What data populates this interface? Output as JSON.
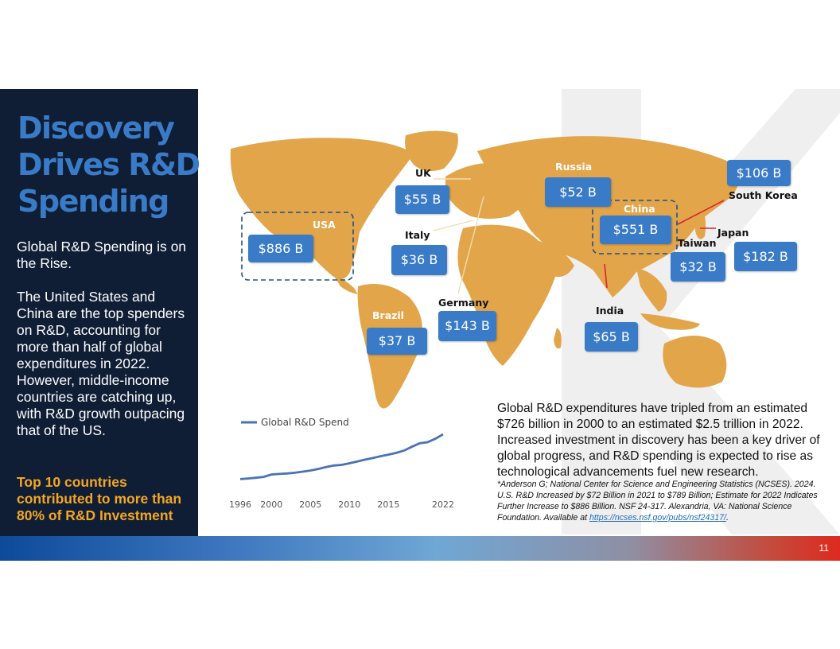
{
  "sidebar": {
    "title_lines": [
      "Discovery",
      "Drives R&D",
      "Spending"
    ],
    "paragraph1": "Global R&D Spending is on the Rise.",
    "paragraph2": "The United States and China are the top spenders on R&D, accounting for more than half of global expenditures in 2022. However, middle-income countries are catching up, with R&D growth outpacing that of the US.",
    "highlight": "Top 10 countries contributed to more than 80% of R&D Investment"
  },
  "map": {
    "labels": {
      "uk": "UK",
      "russia": "Russia",
      "usa": "USA",
      "italy": "Italy",
      "china": "China",
      "south_korea": "South Korea",
      "japan": "Japan",
      "taiwan": "Taiwan",
      "germany": "Germany",
      "brazil": "Brazil",
      "india": "India"
    },
    "values": {
      "usa": "$886 B",
      "uk": "$55 B",
      "italy": "$36 B",
      "russia": "$52 B",
      "china": "$551 B",
      "south_korea": "$106 B",
      "japan": "$182 B",
      "taiwan": "$32 B",
      "germany": "$143 B",
      "brazil": "$37 B",
      "india": "$65 B"
    }
  },
  "chart_data": {
    "type": "line",
    "title": "",
    "legend": "Global R&D Spend",
    "x_ticks": [
      "1996",
      "2000",
      "2005",
      "2010",
      "2015",
      "2022"
    ],
    "x": [
      1996,
      1997,
      1998,
      1999,
      2000,
      2001,
      2002,
      2003,
      2004,
      2005,
      2006,
      2007,
      2008,
      2009,
      2010,
      2011,
      2012,
      2013,
      2014,
      2015,
      2016,
      2017,
      2018,
      2019,
      2020,
      2021,
      2022
    ],
    "values": [
      0.52,
      0.55,
      0.58,
      0.62,
      0.726,
      0.75,
      0.77,
      0.8,
      0.85,
      0.9,
      0.97,
      1.05,
      1.12,
      1.15,
      1.22,
      1.3,
      1.38,
      1.45,
      1.53,
      1.6,
      1.68,
      1.78,
      1.95,
      2.1,
      2.15,
      2.3,
      2.5
    ],
    "xlabel": "",
    "ylabel": "",
    "grid": false,
    "legend_position": "top-left"
  },
  "info": {
    "paragraph": "Global R&D expenditures have tripled from an estimated $726 billion in 2000 to an estimated $2.5 trillion in 2022. Increased investment in discovery has been a key driver of global progress, and R&D spending is expected to rise as technological advancements fuel new research.",
    "citation": "*Anderson G; National Center for Science and Engineering Statistics (NCSES). 2024. U.S. R&D Increased by $72 Billion in 2021 to $789 Billion; Estimate for 2022 Indicates Further Increase to $886 Billion. NSF 24-317. Alexandria, VA: National Science Foundation. Available at ",
    "link": "https://ncses.nsf.gov/pubs/nsf24317/",
    "citation_end": "."
  },
  "footer": {
    "page_number": "11"
  },
  "colors": {
    "sidebar": "#0f1e35",
    "title": "#3a7bc8",
    "highlight": "#f5a623",
    "map_land": "#e2a54a",
    "pill": "#3a7bc8",
    "line": "#4a72b5"
  }
}
